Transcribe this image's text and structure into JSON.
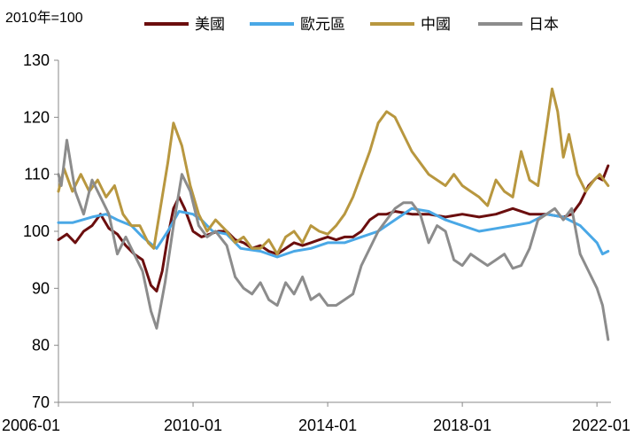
{
  "chart_data": {
    "type": "line",
    "unit_label": "2010年=100",
    "ylim": [
      70,
      130
    ],
    "yticks": [
      70,
      80,
      90,
      100,
      110,
      120,
      130
    ],
    "xlim": [
      "2006-01",
      "2022-06"
    ],
    "xticks": [
      "2006-01",
      "2010-01",
      "2014-01",
      "2018-01",
      "2022-01"
    ],
    "grid": false,
    "legend_position": "top",
    "series": [
      {
        "name": "美國",
        "color": "#6b0e0e",
        "points": [
          [
            "2006-01",
            98.5
          ],
          [
            "2006-04",
            99.5
          ],
          [
            "2006-07",
            98
          ],
          [
            "2006-10",
            100
          ],
          [
            "2007-01",
            101
          ],
          [
            "2007-04",
            103
          ],
          [
            "2007-07",
            100.5
          ],
          [
            "2007-10",
            99.5
          ],
          [
            "2008-01",
            97.5
          ],
          [
            "2008-04",
            96
          ],
          [
            "2008-07",
            95
          ],
          [
            "2008-10",
            90.5
          ],
          [
            "2008-12",
            89.5
          ],
          [
            "2009-02",
            93
          ],
          [
            "2009-04",
            99
          ],
          [
            "2009-06",
            104
          ],
          [
            "2009-08",
            106
          ],
          [
            "2009-10",
            104
          ],
          [
            "2010-01",
            100
          ],
          [
            "2010-04",
            99
          ],
          [
            "2010-07",
            99.5
          ],
          [
            "2010-10",
            100
          ],
          [
            "2011-01",
            100
          ],
          [
            "2011-04",
            98.5
          ],
          [
            "2011-07",
            98
          ],
          [
            "2011-10",
            97
          ],
          [
            "2012-01",
            97.5
          ],
          [
            "2012-04",
            96.5
          ],
          [
            "2012-07",
            96
          ],
          [
            "2012-10",
            97
          ],
          [
            "2013-01",
            98
          ],
          [
            "2013-04",
            97.5
          ],
          [
            "2013-07",
            98
          ],
          [
            "2013-10",
            98.5
          ],
          [
            "2014-01",
            99
          ],
          [
            "2014-04",
            98.5
          ],
          [
            "2014-07",
            99
          ],
          [
            "2014-10",
            99
          ],
          [
            "2015-01",
            100
          ],
          [
            "2015-04",
            102
          ],
          [
            "2015-07",
            103
          ],
          [
            "2015-10",
            103
          ],
          [
            "2016-01",
            103.5
          ],
          [
            "2016-07",
            103
          ],
          [
            "2017-01",
            103
          ],
          [
            "2017-07",
            102.5
          ],
          [
            "2018-01",
            103
          ],
          [
            "2018-07",
            102.5
          ],
          [
            "2019-01",
            103
          ],
          [
            "2019-07",
            104
          ],
          [
            "2020-01",
            103
          ],
          [
            "2020-07",
            103
          ],
          [
            "2021-01",
            102.5
          ],
          [
            "2021-04",
            103
          ],
          [
            "2021-07",
            105
          ],
          [
            "2021-10",
            108
          ],
          [
            "2022-01",
            109.5
          ],
          [
            "2022-03",
            109
          ],
          [
            "2022-05",
            111.5
          ]
        ]
      },
      {
        "name": "歐元區",
        "color": "#4aa8e6",
        "points": [
          [
            "2006-01",
            101.5
          ],
          [
            "2006-06",
            101.5
          ],
          [
            "2007-01",
            102.5
          ],
          [
            "2007-06",
            103
          ],
          [
            "2007-10",
            102
          ],
          [
            "2008-03",
            101
          ],
          [
            "2008-07",
            99
          ],
          [
            "2008-12",
            97
          ],
          [
            "2009-04",
            100
          ],
          [
            "2009-08",
            103.5
          ],
          [
            "2010-01",
            103
          ],
          [
            "2010-04",
            102
          ],
          [
            "2010-08",
            100
          ],
          [
            "2011-01",
            99.5
          ],
          [
            "2011-06",
            97
          ],
          [
            "2012-01",
            96.5
          ],
          [
            "2012-07",
            95.5
          ],
          [
            "2013-01",
            96.5
          ],
          [
            "2013-07",
            97
          ],
          [
            "2014-01",
            98
          ],
          [
            "2014-07",
            98
          ],
          [
            "2015-01",
            99
          ],
          [
            "2015-07",
            100
          ],
          [
            "2016-01",
            102
          ],
          [
            "2016-07",
            104
          ],
          [
            "2017-01",
            103.5
          ],
          [
            "2017-07",
            102
          ],
          [
            "2018-01",
            101
          ],
          [
            "2018-07",
            100
          ],
          [
            "2019-01",
            100.5
          ],
          [
            "2019-07",
            101
          ],
          [
            "2020-01",
            101.5
          ],
          [
            "2020-07",
            103
          ],
          [
            "2021-01",
            102.5
          ],
          [
            "2021-07",
            101
          ],
          [
            "2022-01",
            98
          ],
          [
            "2022-03",
            96
          ],
          [
            "2022-05",
            96.5
          ]
        ]
      },
      {
        "name": "中國",
        "color": "#b8973f",
        "points": [
          [
            "2006-01",
            107
          ],
          [
            "2006-03",
            111
          ],
          [
            "2006-06",
            107
          ],
          [
            "2006-09",
            110
          ],
          [
            "2006-12",
            107
          ],
          [
            "2007-03",
            109
          ],
          [
            "2007-06",
            106
          ],
          [
            "2007-09",
            108
          ],
          [
            "2007-12",
            103
          ],
          [
            "2008-03",
            101
          ],
          [
            "2008-06",
            101
          ],
          [
            "2008-09",
            98
          ],
          [
            "2008-11",
            97
          ],
          [
            "2009-01",
            103
          ],
          [
            "2009-04",
            112
          ],
          [
            "2009-06",
            119
          ],
          [
            "2009-09",
            115
          ],
          [
            "2009-12",
            108
          ],
          [
            "2010-03",
            103
          ],
          [
            "2010-06",
            100
          ],
          [
            "2010-09",
            102
          ],
          [
            "2011-01",
            100
          ],
          [
            "2011-04",
            98
          ],
          [
            "2011-07",
            99
          ],
          [
            "2011-10",
            97
          ],
          [
            "2012-01",
            97
          ],
          [
            "2012-04",
            98.5
          ],
          [
            "2012-07",
            96
          ],
          [
            "2012-10",
            99
          ],
          [
            "2013-01",
            100
          ],
          [
            "2013-04",
            98
          ],
          [
            "2013-07",
            101
          ],
          [
            "2013-10",
            100
          ],
          [
            "2014-01",
            99.5
          ],
          [
            "2014-04",
            101
          ],
          [
            "2014-07",
            103
          ],
          [
            "2014-10",
            106
          ],
          [
            "2015-01",
            110
          ],
          [
            "2015-04",
            114
          ],
          [
            "2015-07",
            119
          ],
          [
            "2015-10",
            121
          ],
          [
            "2016-01",
            120
          ],
          [
            "2016-04",
            117
          ],
          [
            "2016-07",
            114
          ],
          [
            "2016-10",
            112
          ],
          [
            "2017-01",
            110
          ],
          [
            "2017-04",
            109
          ],
          [
            "2017-07",
            108
          ],
          [
            "2017-10",
            110
          ],
          [
            "2018-01",
            108
          ],
          [
            "2018-04",
            107
          ],
          [
            "2018-07",
            106
          ],
          [
            "2018-10",
            104.5
          ],
          [
            "2019-01",
            109
          ],
          [
            "2019-04",
            107
          ],
          [
            "2019-07",
            106
          ],
          [
            "2019-10",
            114
          ],
          [
            "2020-01",
            109
          ],
          [
            "2020-04",
            108
          ],
          [
            "2020-07",
            118
          ],
          [
            "2020-09",
            125
          ],
          [
            "2020-11",
            121
          ],
          [
            "2021-01",
            113
          ],
          [
            "2021-03",
            117
          ],
          [
            "2021-06",
            110
          ],
          [
            "2021-09",
            107
          ],
          [
            "2021-12",
            109
          ],
          [
            "2022-02",
            110
          ],
          [
            "2022-05",
            108
          ]
        ]
      },
      {
        "name": "日本",
        "color": "#8c8c8c",
        "points": [
          [
            "2006-01",
            110
          ],
          [
            "2006-02",
            108
          ],
          [
            "2006-04",
            116
          ],
          [
            "2006-07",
            107
          ],
          [
            "2006-10",
            103
          ],
          [
            "2007-01",
            109
          ],
          [
            "2007-04",
            106
          ],
          [
            "2007-07",
            103
          ],
          [
            "2007-10",
            96
          ],
          [
            "2008-01",
            99
          ],
          [
            "2008-04",
            96
          ],
          [
            "2008-07",
            93
          ],
          [
            "2008-10",
            86
          ],
          [
            "2008-12",
            83
          ],
          [
            "2009-03",
            91
          ],
          [
            "2009-06",
            101
          ],
          [
            "2009-09",
            110
          ],
          [
            "2009-12",
            107
          ],
          [
            "2010-03",
            101
          ],
          [
            "2010-06",
            99
          ],
          [
            "2010-09",
            100
          ],
          [
            "2011-01",
            97.5
          ],
          [
            "2011-04",
            92
          ],
          [
            "2011-07",
            90
          ],
          [
            "2011-10",
            89
          ],
          [
            "2012-01",
            91
          ],
          [
            "2012-04",
            88
          ],
          [
            "2012-07",
            87
          ],
          [
            "2012-10",
            91
          ],
          [
            "2013-01",
            89
          ],
          [
            "2013-04",
            92
          ],
          [
            "2013-07",
            88
          ],
          [
            "2013-10",
            89
          ],
          [
            "2014-01",
            87
          ],
          [
            "2014-04",
            87
          ],
          [
            "2014-07",
            88
          ],
          [
            "2014-10",
            89
          ],
          [
            "2015-01",
            94
          ],
          [
            "2015-04",
            97
          ],
          [
            "2015-07",
            100
          ],
          [
            "2015-10",
            102
          ],
          [
            "2016-01",
            104
          ],
          [
            "2016-04",
            105
          ],
          [
            "2016-07",
            105
          ],
          [
            "2016-10",
            103
          ],
          [
            "2017-01",
            98
          ],
          [
            "2017-04",
            101
          ],
          [
            "2017-07",
            100
          ],
          [
            "2017-10",
            95
          ],
          [
            "2018-01",
            94
          ],
          [
            "2018-04",
            96
          ],
          [
            "2018-07",
            95
          ],
          [
            "2018-10",
            94
          ],
          [
            "2019-01",
            95
          ],
          [
            "2019-04",
            96
          ],
          [
            "2019-07",
            93.5
          ],
          [
            "2019-10",
            94
          ],
          [
            "2020-01",
            97
          ],
          [
            "2020-04",
            102
          ],
          [
            "2020-07",
            103
          ],
          [
            "2020-10",
            104
          ],
          [
            "2021-01",
            102
          ],
          [
            "2021-04",
            104
          ],
          [
            "2021-07",
            96
          ],
          [
            "2021-10",
            93
          ],
          [
            "2022-01",
            90
          ],
          [
            "2022-03",
            87
          ],
          [
            "2022-05",
            81
          ]
        ]
      }
    ]
  }
}
